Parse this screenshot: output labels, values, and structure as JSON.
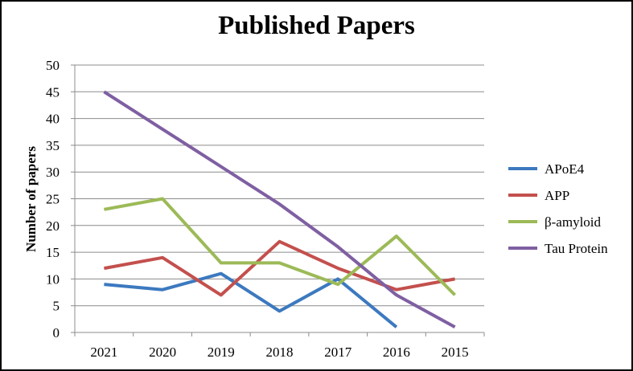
{
  "chart_data": {
    "type": "line",
    "title": "Published Papers",
    "xlabel": "",
    "ylabel": "Number of papers",
    "categories": [
      "2021",
      "2020",
      "2019",
      "2018",
      "2017",
      "2016",
      "2015"
    ],
    "ylim": [
      0,
      50
    ],
    "yticks": [
      0,
      5,
      10,
      15,
      20,
      25,
      30,
      35,
      40,
      45,
      50
    ],
    "grid": true,
    "legend_position": "right",
    "series": [
      {
        "name": "APoE4",
        "color": "#3c79bf",
        "values": [
          9,
          8,
          11,
          4,
          10,
          1,
          null
        ]
      },
      {
        "name": "APP",
        "color": "#c3504d",
        "values": [
          12,
          14,
          7,
          17,
          12,
          8,
          10
        ]
      },
      {
        "name": "β-amyloid",
        "color": "#9cba57",
        "values": [
          23,
          25,
          13,
          13,
          9,
          18,
          7
        ]
      },
      {
        "name": "Tau Protein",
        "color": "#7f5fa2",
        "values": [
          45,
          38,
          31,
          24,
          16,
          7,
          1
        ]
      }
    ]
  }
}
